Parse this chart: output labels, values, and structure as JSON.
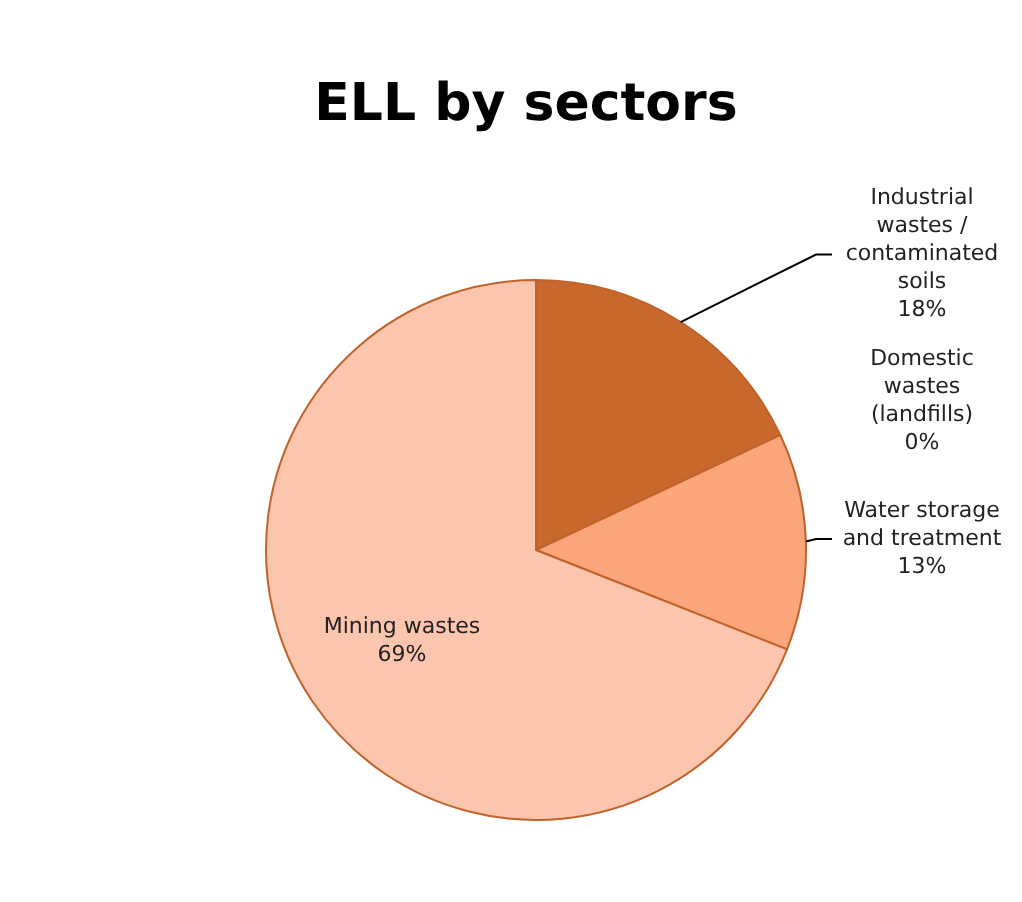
{
  "chart_data": {
    "type": "pie",
    "title": "ELL by sectors",
    "categories": [
      "Industrial wastes / contaminated soils",
      "Domestic wastes (landfills)",
      "Water storage and treatment",
      "Mining wastes"
    ],
    "values": [
      18,
      0,
      13,
      69
    ],
    "colors": [
      "#c8682c",
      "#e98a50",
      "#fba57a",
      "#fcc5ae"
    ],
    "value_labels": [
      "18%",
      "0%",
      "13%",
      "69%"
    ]
  }
}
